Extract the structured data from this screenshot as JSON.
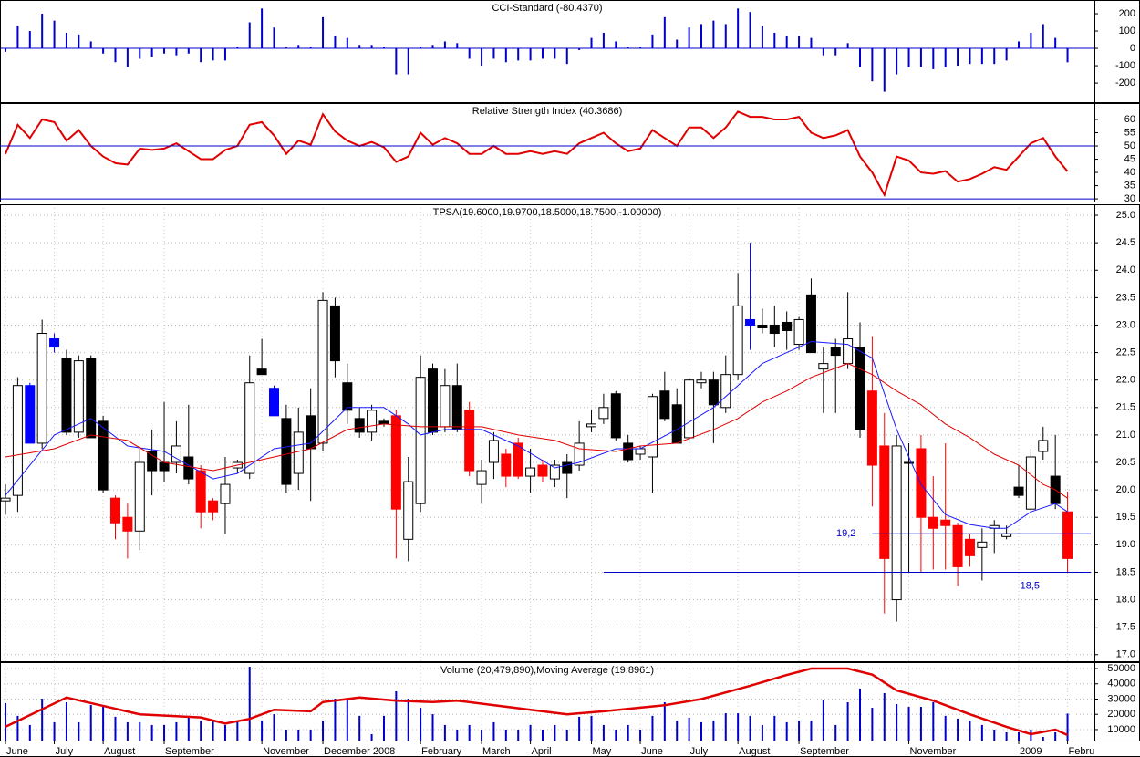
{
  "chart_data": [
    {
      "type": "bar",
      "title": "CCI-Standard (-80.4370)",
      "color": "#0000cc",
      "xlim": [
        -0.45,
        89.2
      ],
      "ylim": [
        -310,
        279
      ],
      "yticks": [
        200,
        100,
        0,
        -100,
        -200
      ],
      "values": [
        -20,
        130,
        100,
        200,
        160,
        90,
        80,
        40,
        -30,
        -80,
        -110,
        -60,
        -50,
        -30,
        -40,
        -30,
        -80,
        -70,
        -70,
        10,
        150,
        230,
        120,
        5,
        20,
        10,
        180,
        70,
        60,
        20,
        20,
        10,
        -150,
        -150,
        10,
        20,
        40,
        30,
        -60,
        -100,
        -60,
        -80,
        -70,
        -70,
        -60,
        -60,
        -90,
        -10,
        60,
        90,
        40,
        10,
        10,
        80,
        180,
        50,
        120,
        140,
        160,
        140,
        230,
        210,
        130,
        90,
        70,
        70,
        60,
        -40,
        -40,
        30,
        -110,
        -190,
        -250,
        -150,
        -110,
        -110,
        -120,
        -110,
        -100,
        -90,
        -90,
        -90,
        -70,
        40,
        90,
        140,
        60,
        -80.437
      ]
    },
    {
      "type": "line",
      "title": "Relative Strength Index (40.3686)",
      "color": "#e00000",
      "reference_lines": [
        50,
        30
      ],
      "reference_color": "#0000cc",
      "xlim": [
        -0.45,
        89.2
      ],
      "ylim": [
        29,
        66.2
      ],
      "yticks": [
        60,
        55,
        50,
        45,
        40,
        35,
        30
      ],
      "values": [
        47,
        58,
        53,
        60,
        59,
        52,
        56,
        50,
        46,
        43.5,
        43,
        49,
        48.5,
        49,
        51,
        48,
        45,
        45,
        48.5,
        50,
        58,
        59,
        54,
        47,
        52,
        50.5,
        62,
        55.5,
        52,
        50,
        51.5,
        49.5,
        44,
        46,
        55,
        50.5,
        53,
        51,
        47,
        47,
        50,
        47,
        47,
        48,
        47,
        48,
        47,
        51,
        53,
        55,
        51,
        48,
        49,
        56,
        53,
        50,
        57,
        57,
        53,
        57,
        63,
        61,
        61,
        60,
        60,
        61,
        55,
        53,
        54,
        56,
        46,
        40,
        31.5,
        46,
        44.5,
        40,
        39.5,
        40.5,
        36.5,
        37.5,
        39.5,
        42,
        41,
        46,
        51,
        53,
        46,
        40.3686
      ]
    },
    {
      "type": "candlestick",
      "title": "TPSA(19.6000,19.9700,18.5000,18.7500,-1.00000)",
      "grid": true,
      "xlim": [
        -0.45,
        89.2
      ],
      "ylim": [
        16.88,
        25.2
      ],
      "yticks": [
        {
          "value": 17,
          "label": "17.0"
        },
        {
          "value": 17.5,
          "label": "17.5"
        },
        {
          "value": 18,
          "label": "18.0"
        },
        {
          "value": 18.5,
          "label": "18.5"
        },
        {
          "value": 19,
          "label": "19.0"
        },
        {
          "value": 19.5,
          "label": "19.5"
        },
        {
          "value": 20,
          "label": "20.0"
        },
        {
          "value": 20.5,
          "label": "20.5"
        },
        {
          "value": 21,
          "label": "21.0"
        },
        {
          "value": 21.5,
          "label": "21.5"
        },
        {
          "value": 22,
          "label": "22.0"
        },
        {
          "value": 22.5,
          "label": "22.5"
        },
        {
          "value": 23,
          "label": "23.0"
        },
        {
          "value": 23.5,
          "label": "23.5"
        },
        {
          "value": 24,
          "label": "24.0"
        },
        {
          "value": 24.5,
          "label": "24.5"
        },
        {
          "value": 25,
          "label": "25.0"
        }
      ],
      "open": [
        19.8,
        19.9,
        21.9,
        20.85,
        22.75,
        22.4,
        21.05,
        22.4,
        21.25,
        19.85,
        19.5,
        19.25,
        20.7,
        20.5,
        20.5,
        20.6,
        20.35,
        19.8,
        19.75,
        20.4,
        20.3,
        22.2,
        21.85,
        21.3,
        20.3,
        21.35,
        20.85,
        23.35,
        21.95,
        21.3,
        21.05,
        21.25,
        21.35,
        19.1,
        19.75,
        22.2,
        21.15,
        21.9,
        21.45,
        20.1,
        20.5,
        20.65,
        20.85,
        20.25,
        20.45,
        20.2,
        20.5,
        20.45,
        21.15,
        21.3,
        21.75,
        20.85,
        20.65,
        20.6,
        21.8,
        21.55,
        20.95,
        21.95,
        22.0,
        21.5,
        22.1,
        23.1,
        23.0,
        23.0,
        23.05,
        22.65,
        23.55,
        22.2,
        22.6,
        22.3,
        22.6,
        21.8,
        20.8,
        18.0,
        20.5,
        20.75,
        19.5,
        19.45,
        19.35,
        19.1,
        18.95,
        19.3,
        19.15,
        20.05,
        19.65,
        20.7,
        20.25,
        19.6
      ],
      "high": [
        20.1,
        22.05,
        21.95,
        23.1,
        22.85,
        22.55,
        22.45,
        22.45,
        21.35,
        19.9,
        19.75,
        20.75,
        21.1,
        21.6,
        21.25,
        21.55,
        20.45,
        19.85,
        20.6,
        20.55,
        22.45,
        22.75,
        21.9,
        21.55,
        21.5,
        21.85,
        23.6,
        23.5,
        22.3,
        21.5,
        21.55,
        21.3,
        21.45,
        20.6,
        22.45,
        22.3,
        22.2,
        22.3,
        21.6,
        20.55,
        21.05,
        20.75,
        20.95,
        20.75,
        20.55,
        20.55,
        20.65,
        21.25,
        21.45,
        21.75,
        21.8,
        21.0,
        20.8,
        21.75,
        22.15,
        21.85,
        22.05,
        22.15,
        22.15,
        22.45,
        23.95,
        24.5,
        23.3,
        23.35,
        23.25,
        23.15,
        23.85,
        22.6,
        22.75,
        23.6,
        23.05,
        22.8,
        21.4,
        21.0,
        20.85,
        21.0,
        20.25,
        20.85,
        19.4,
        19.2,
        19.3,
        19.45,
        19.35,
        20.45,
        20.75,
        21.15,
        21.0,
        19.97
      ],
      "low": [
        19.55,
        19.6,
        20.85,
        20.75,
        22.5,
        21.0,
        20.95,
        20.95,
        19.95,
        19.1,
        18.75,
        18.9,
        19.9,
        20.15,
        20.3,
        20.1,
        19.3,
        19.45,
        19.2,
        20.3,
        20.2,
        22.1,
        21.35,
        19.95,
        20.0,
        19.8,
        20.7,
        22.05,
        21.2,
        20.95,
        20.9,
        21.15,
        18.75,
        18.7,
        19.6,
        21.0,
        21.05,
        21.05,
        20.25,
        19.75,
        20.2,
        20.05,
        20.2,
        19.95,
        20.15,
        20.05,
        19.85,
        20.35,
        21.05,
        21.2,
        20.9,
        20.5,
        20.55,
        19.95,
        21.25,
        20.85,
        20.85,
        21.85,
        20.85,
        21.4,
        22.0,
        22.55,
        22.85,
        22.6,
        22.55,
        22.55,
        22.5,
        21.4,
        21.4,
        22.2,
        20.95,
        19.7,
        17.75,
        17.6,
        18.5,
        18.5,
        18.55,
        18.55,
        18.25,
        18.6,
        18.35,
        18.85,
        19.1,
        19.85,
        19.6,
        20.55,
        19.65,
        18.5
      ],
      "close": [
        19.85,
        21.9,
        20.85,
        22.85,
        22.6,
        21.05,
        22.35,
        20.95,
        20.0,
        19.4,
        19.25,
        20.5,
        20.35,
        20.35,
        20.8,
        20.2,
        19.6,
        19.6,
        20.1,
        20.5,
        21.95,
        22.1,
        21.35,
        20.1,
        21.05,
        20.75,
        23.45,
        22.35,
        21.45,
        21.05,
        21.45,
        21.2,
        19.65,
        20.15,
        22.05,
        21.05,
        21.9,
        21.1,
        20.35,
        20.35,
        20.9,
        20.25,
        20.25,
        20.4,
        20.25,
        20.45,
        20.3,
        20.85,
        21.2,
        21.5,
        20.95,
        20.55,
        20.75,
        21.7,
        21.3,
        20.85,
        22.0,
        22.0,
        21.55,
        22.1,
        23.35,
        23.0,
        22.95,
        22.85,
        22.9,
        23.1,
        22.5,
        22.3,
        22.45,
        22.75,
        21.1,
        20.45,
        18.75,
        20.8,
        20.5,
        19.5,
        19.3,
        19.35,
        18.6,
        18.8,
        19.05,
        19.35,
        19.2,
        19.9,
        20.6,
        20.9,
        19.75,
        18.75
      ],
      "candle_colors": [
        "#ffffff",
        "#ffffff",
        "#0000ff",
        "#ffffff",
        "#0000ff",
        "#000000",
        "#ffffff",
        "#000000",
        "#000000",
        "#ff0000",
        "#ff0000",
        "#ffffff",
        "#000000",
        "#000000",
        "#ffffff",
        "#000000",
        "#ff0000",
        "#ff0000",
        "#ffffff",
        "#ffffff",
        "#ffffff",
        "#000000",
        "#0000ff",
        "#000000",
        "#ffffff",
        "#000000",
        "#ffffff",
        "#000000",
        "#000000",
        "#000000",
        "#ffffff",
        "#000000",
        "#ff0000",
        "#ffffff",
        "#ffffff",
        "#000000",
        "#ffffff",
        "#000000",
        "#ff0000",
        "#ffffff",
        "#ffffff",
        "#ff0000",
        "#ff0000",
        "#ffffff",
        "#ff0000",
        "#ffffff",
        "#000000",
        "#ffffff",
        "#ffffff",
        "#ffffff",
        "#000000",
        "#000000",
        "#ffffff",
        "#ffffff",
        "#000000",
        "#000000",
        "#ffffff",
        "#ffffff",
        "#000000",
        "#ffffff",
        "#ffffff",
        "#0000ff",
        "#000000",
        "#000000",
        "#000000",
        "#ffffff",
        "#000000",
        "#ffffff",
        "#000000",
        "#ffffff",
        "#000000",
        "#ff0000",
        "#ff0000",
        "#ffffff",
        "#ffffff",
        "#ff0000",
        "#ff0000",
        "#ff0000",
        "#ff0000",
        "#ff0000",
        "#ffffff",
        "#ffffff",
        "#ffffff",
        "#000000",
        "#ffffff",
        "#ffffff",
        "#000000",
        "#ff0000"
      ],
      "lines": [
        {
          "color": "#1a1aff",
          "x": [
            0,
            4,
            7,
            10,
            13,
            17,
            19,
            22,
            25,
            28,
            31,
            33,
            34,
            36,
            39,
            42,
            45,
            47,
            50,
            52,
            55,
            58,
            60,
            62,
            64,
            66,
            69,
            71,
            73,
            75,
            77,
            79,
            81,
            82,
            84,
            86,
            87
          ],
          "values": [
            19.9,
            21.0,
            21.3,
            20.8,
            20.7,
            20.2,
            20.3,
            20.75,
            20.85,
            21.5,
            21.5,
            21.2,
            21.0,
            21.1,
            21.1,
            20.8,
            20.4,
            20.5,
            20.75,
            20.75,
            21.1,
            21.5,
            21.9,
            22.3,
            22.5,
            22.7,
            22.65,
            22.4,
            21.1,
            20.1,
            19.55,
            19.37,
            19.3,
            19.3,
            19.6,
            19.75,
            19.6
          ]
        },
        {
          "color": "#e00000",
          "x": [
            0,
            4,
            7,
            10,
            13,
            17,
            19,
            22,
            25,
            28,
            31,
            34,
            36,
            39,
            42,
            45,
            47,
            50,
            52,
            55,
            58,
            60,
            62,
            64,
            66,
            69,
            71,
            73,
            75,
            77,
            79,
            81,
            83,
            85,
            86,
            87
          ],
          "values": [
            20.6,
            20.75,
            21.0,
            20.9,
            20.5,
            20.35,
            20.45,
            20.6,
            20.75,
            21.1,
            21.2,
            21.15,
            21.15,
            21.15,
            21.0,
            20.9,
            20.75,
            20.7,
            20.8,
            20.85,
            21.1,
            21.3,
            21.6,
            21.8,
            22.05,
            22.3,
            22.1,
            21.8,
            21.55,
            21.2,
            20.95,
            20.65,
            20.45,
            20.1,
            20.0,
            19.85
          ]
        }
      ],
      "levels": [
        {
          "value": 19.2,
          "label": "19,2",
          "from": 71,
          "color": "#0000cc"
        },
        {
          "value": 18.5,
          "label": "18,5",
          "from": 49,
          "color": "#0000cc"
        }
      ]
    },
    {
      "type": "bar",
      "title": "Volume (20,479,890),Moving Average (19.8961)",
      "color": "#0000cc",
      "grid": true,
      "xlim": [
        -0.45,
        89.2
      ],
      "ylim": [
        2800,
        54200
      ],
      "yticks": [
        50000,
        40000,
        30000,
        20000,
        10000
      ],
      "values": [
        27300,
        19000,
        13000,
        30300,
        14800,
        27900,
        14800,
        26100,
        24900,
        18400,
        14800,
        14800,
        13000,
        13000,
        14800,
        19000,
        16000,
        16000,
        13000,
        16000,
        51200,
        16000,
        20100,
        10000,
        10000,
        10000,
        16000,
        30300,
        30300,
        19000,
        7000,
        19000,
        35100,
        30300,
        24300,
        20100,
        13000,
        10000,
        13000,
        10000,
        14800,
        10000,
        10000,
        13000,
        10000,
        13000,
        10000,
        18400,
        19000,
        13000,
        10000,
        13000,
        10000,
        19000,
        27900,
        16000,
        17800,
        14800,
        16000,
        20700,
        20700,
        19000,
        13000,
        19000,
        14800,
        16000,
        16000,
        29100,
        13000,
        27900,
        36900,
        24300,
        33900,
        26700,
        24900,
        24900,
        27900,
        19000,
        17200,
        16000,
        13000,
        10000,
        8200,
        8200,
        10000,
        5200,
        8200,
        20480
      ],
      "lines": [
        {
          "color": "#e00000",
          "x": [
            0,
            5,
            11,
            16,
            18,
            20,
            22,
            25,
            26,
            29,
            32,
            35,
            37,
            41,
            46,
            49,
            54,
            57,
            61,
            64,
            66,
            69,
            71,
            73,
            76,
            79,
            82,
            84,
            86,
            87
          ],
          "values": [
            11800,
            31000,
            20000,
            18000,
            14000,
            17000,
            23000,
            22000,
            28000,
            31000,
            29000,
            28000,
            29000,
            25000,
            20000,
            22000,
            26000,
            30000,
            38700,
            45800,
            50000,
            50000,
            46000,
            35700,
            29000,
            20000,
            11800,
            7000,
            10000,
            6400
          ]
        }
      ],
      "categories": [
        "June",
        null,
        null,
        null,
        "July",
        null,
        null,
        null,
        "August",
        null,
        null,
        null,
        null,
        "September",
        null,
        null,
        null,
        null,
        null,
        null,
        null,
        "November",
        null,
        null,
        null,
        null,
        "December 2008",
        null,
        null,
        null,
        null,
        null,
        null,
        null,
        "February",
        null,
        null,
        null,
        null,
        "March",
        null,
        null,
        null,
        "April",
        null,
        null,
        null,
        null,
        "May",
        null,
        null,
        null,
        "June",
        null,
        null,
        null,
        "July",
        null,
        null,
        null,
        "August",
        null,
        null,
        null,
        null,
        "September",
        null,
        null,
        null,
        null,
        null,
        null,
        null,
        null,
        "November",
        null,
        null,
        null,
        null,
        null,
        null,
        null,
        null,
        "2009",
        null,
        null,
        null,
        "February"
      ]
    }
  ]
}
